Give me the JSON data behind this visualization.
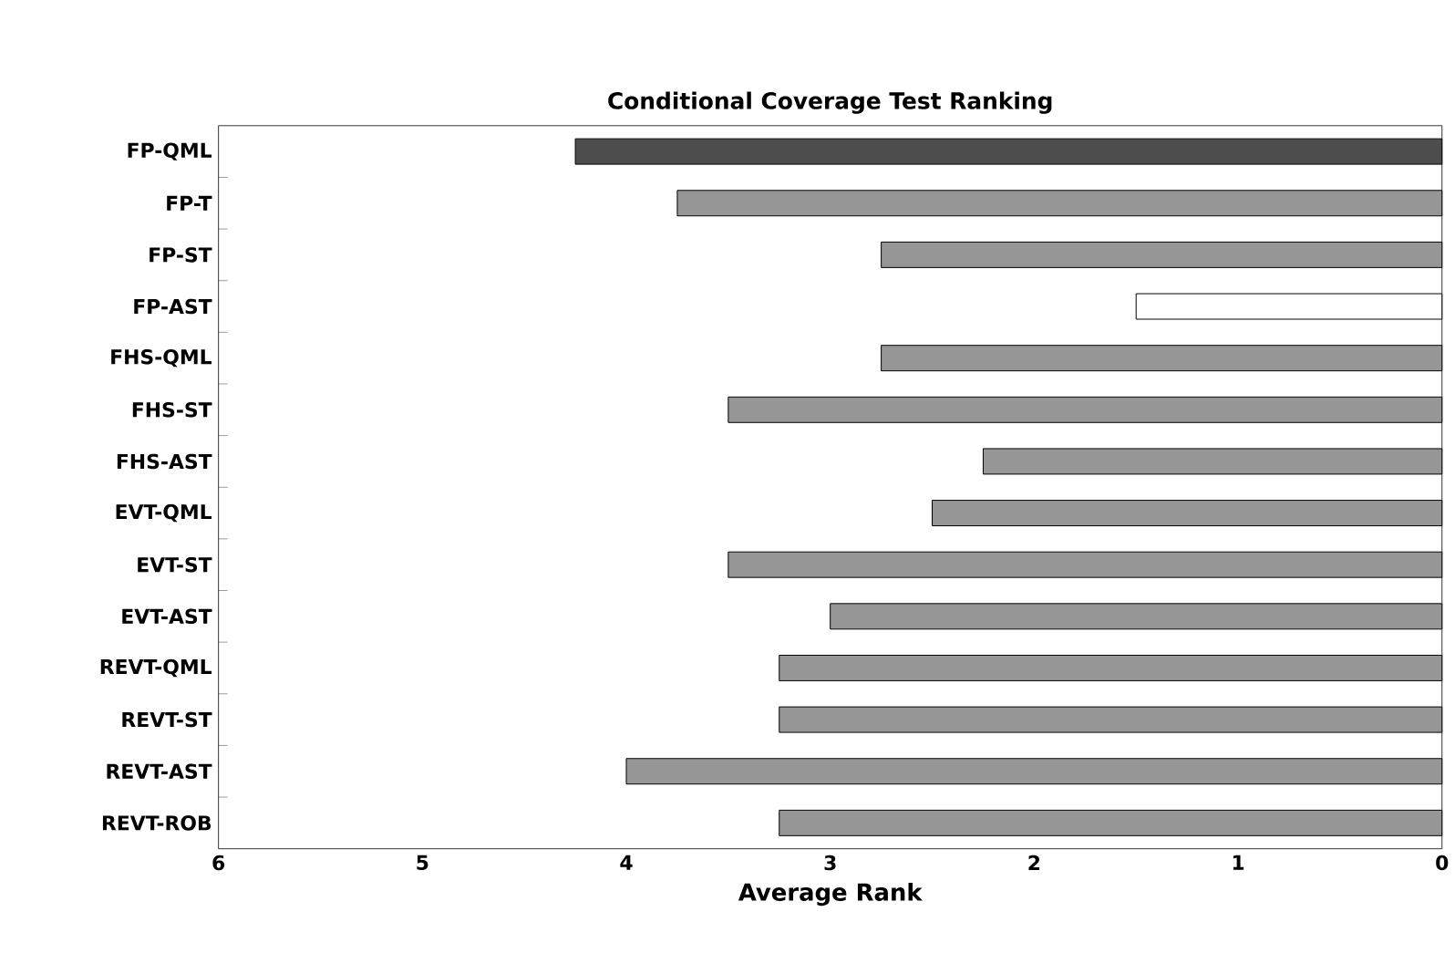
{
  "chart_data": {
    "type": "bar",
    "orientation": "horizontal",
    "title": "Conditional Coverage Test Ranking",
    "xlabel": "Average Rank",
    "categories": [
      "FP-QML",
      "FP-T",
      "FP-ST",
      "FP-AST",
      "FHS-QML",
      "FHS-ST",
      "FHS-AST",
      "EVT-QML",
      "EVT-ST",
      "EVT-AST",
      "REVT-QML",
      "REVT-ST",
      "REVT-AST",
      "REVT-ROB"
    ],
    "values": [
      4.25,
      3.75,
      2.75,
      1.5,
      2.75,
      3.5,
      2.25,
      2.5,
      3.5,
      3.0,
      3.25,
      3.25,
      4.0,
      3.25
    ],
    "colors": [
      "#4d4d4d",
      "#969696",
      "#969696",
      "#ffffff",
      "#969696",
      "#969696",
      "#969696",
      "#969696",
      "#969696",
      "#969696",
      "#969696",
      "#969696",
      "#969696",
      "#969696"
    ],
    "xlim": [
      6,
      0
    ],
    "xticks": [
      6,
      5,
      4,
      3,
      2,
      1,
      0
    ],
    "grid": false
  }
}
